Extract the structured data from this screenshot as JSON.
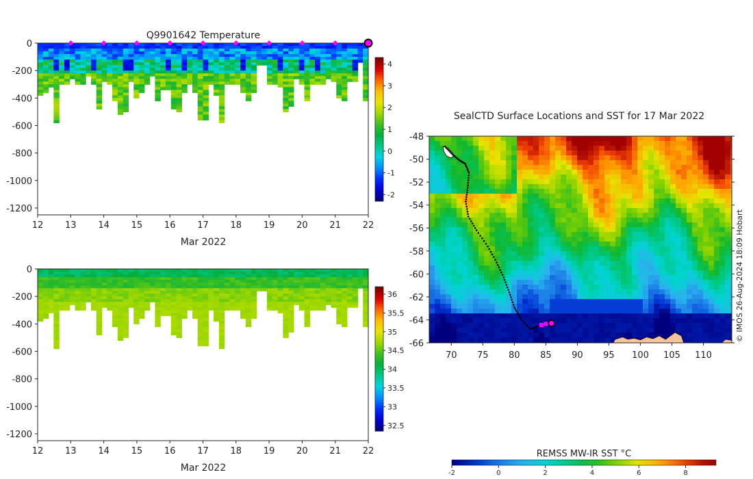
{
  "colors": {
    "jet": [
      "#00007f",
      "#0000d4",
      "#0030ff",
      "#0090ff",
      "#00d4e6",
      "#00c888",
      "#00b040",
      "#40c020",
      "#a0d800",
      "#e6e600",
      "#ffc000",
      "#ff6a00",
      "#e00000",
      "#800000"
    ],
    "sst_sea_stops": [
      {
        "v": -2,
        "c": "#00007f"
      },
      {
        "v": -1,
        "c": "#0030d0"
      },
      {
        "v": 0,
        "c": "#1a78e6"
      },
      {
        "v": 1,
        "c": "#2bb2ee"
      },
      {
        "v": 2,
        "c": "#00d4d0"
      },
      {
        "v": 3,
        "c": "#00c880"
      },
      {
        "v": 4,
        "c": "#10b830"
      },
      {
        "v": 5,
        "c": "#80d000"
      },
      {
        "v": 6,
        "c": "#e6e600"
      },
      {
        "v": 7,
        "c": "#ffa000"
      },
      {
        "v": 8,
        "c": "#f04000"
      },
      {
        "v": 9,
        "c": "#a00000"
      }
    ],
    "land": "#f4c39a",
    "track": "#000000",
    "marker": "#ff00ff"
  },
  "chart_data": [
    {
      "type": "heatmap",
      "name": "temperature-section",
      "title": "Q9901642  Temperature",
      "xlabel": "Mar 2022",
      "ylabel": "",
      "xlim": [
        12,
        22
      ],
      "ylim": [
        -1250,
        0
      ],
      "x_ticks": [
        "12",
        "13",
        "14",
        "15",
        "16",
        "17",
        "18",
        "19",
        "20",
        "21",
        "22"
      ],
      "y_ticks": [
        {
          "v": 0,
          "label": "0"
        },
        {
          "v": -200,
          "label": "-200"
        },
        {
          "v": -400,
          "label": "-400"
        },
        {
          "v": -600,
          "label": "-600"
        },
        {
          "v": -800,
          "label": "-800"
        },
        {
          "v": -1000,
          "label": "-1000"
        },
        {
          "v": -1200,
          "label": "-1200"
        }
      ],
      "colorbar": {
        "min": -2.3,
        "max": 4.3,
        "ticks": [
          "-2",
          "-1",
          "0",
          "1",
          "2",
          "3",
          "4"
        ],
        "tick_values": [
          -2,
          -1,
          0,
          1,
          2,
          3,
          4
        ]
      },
      "value_range": [
        -2.3,
        4.3
      ],
      "profile_depths": [
        380,
        360,
        310,
        570,
        290,
        300,
        250,
        290,
        300,
        240,
        290,
        480,
        270,
        290,
        410,
        520,
        500,
        270,
        390,
        360,
        290,
        230,
        410,
        330,
        340,
        480,
        500,
        360,
        290,
        360,
        550,
        550,
        300,
        370,
        570,
        290,
        290,
        290,
        360,
        420,
        350,
        150,
        150,
        300,
        300,
        320,
        500,
        450,
        250,
        300,
        420,
        290,
        300,
        300,
        250,
        270,
        400,
        410,
        280,
        280,
        130,
        420
      ],
      "surface_markers": [
        13,
        14,
        15,
        16,
        17,
        18,
        19,
        20,
        21
      ],
      "current_marker": 22
    },
    {
      "type": "heatmap",
      "name": "salinity-section",
      "title": "",
      "xlabel": "Mar 2022",
      "ylabel": "",
      "xlim": [
        12,
        22
      ],
      "ylim": [
        -1250,
        0
      ],
      "x_ticks": [
        "12",
        "13",
        "14",
        "15",
        "16",
        "17",
        "18",
        "19",
        "20",
        "21",
        "22"
      ],
      "y_ticks": [
        {
          "v": 0,
          "label": "0"
        },
        {
          "v": -200,
          "label": "-200"
        },
        {
          "v": -400,
          "label": "-400"
        },
        {
          "v": -600,
          "label": "-600"
        },
        {
          "v": -800,
          "label": "-800"
        },
        {
          "v": -1000,
          "label": "-1000"
        },
        {
          "v": -1200,
          "label": "-1200"
        }
      ],
      "colorbar": {
        "min": 32.35,
        "max": 36.2,
        "ticks": [
          "32.5",
          "33",
          "33.5",
          "34",
          "34.5",
          "35",
          "35.5",
          "36"
        ],
        "tick_values": [
          32.5,
          33,
          33.5,
          34,
          34.5,
          35,
          35.5,
          36
        ]
      },
      "value_range": [
        32.35,
        36.2
      ],
      "profile_depths": [
        380,
        360,
        310,
        570,
        290,
        300,
        250,
        290,
        300,
        240,
        290,
        480,
        270,
        290,
        410,
        520,
        500,
        270,
        390,
        360,
        290,
        230,
        410,
        330,
        340,
        480,
        500,
        360,
        290,
        360,
        550,
        550,
        300,
        370,
        570,
        290,
        290,
        290,
        360,
        420,
        350,
        150,
        150,
        300,
        300,
        320,
        500,
        450,
        250,
        300,
        420,
        290,
        300,
        300,
        250,
        270,
        400,
        410,
        280,
        280,
        130,
        420
      ]
    },
    {
      "type": "heatmap",
      "name": "sst-map",
      "title": "SealCTD Surface Locations and SST for 17 Mar 2022",
      "xlabel": "",
      "ylabel": "",
      "xlim": [
        66.5,
        114.5
      ],
      "ylim": [
        -66,
        -48
      ],
      "x_ticks": [
        "70",
        "75",
        "80",
        "85",
        "90",
        "95",
        "100",
        "105",
        "110"
      ],
      "x_tick_values": [
        70,
        75,
        80,
        85,
        90,
        95,
        100,
        105,
        110
      ],
      "y_ticks": [
        "-48",
        "-50",
        "-52",
        "-54",
        "-56",
        "-58",
        "-60",
        "-62",
        "-64",
        "-66"
      ],
      "y_tick_values": [
        -48,
        -50,
        -52,
        -54,
        -56,
        -58,
        -60,
        -62,
        -64,
        -66
      ],
      "colorbar": {
        "title": "REMSS MW-IR SST °C",
        "min": -2,
        "max": 9.3,
        "ticks": [
          "-2",
          "0",
          "2",
          "4",
          "6",
          "8"
        ],
        "tick_values": [
          -2,
          0,
          2,
          4,
          6,
          8
        ]
      },
      "track": [
        {
          "lon": 69.0,
          "lat": -48.9
        },
        {
          "lon": 70.2,
          "lat": -49.6
        },
        {
          "lon": 71.3,
          "lat": -50.1
        },
        {
          "lon": 72.2,
          "lat": -50.4
        },
        {
          "lon": 72.8,
          "lat": -51.2
        },
        {
          "lon": 72.6,
          "lat": -52.5
        },
        {
          "lon": 72.3,
          "lat": -53.7
        },
        {
          "lon": 72.7,
          "lat": -55.0
        },
        {
          "lon": 74.0,
          "lat": -56.2
        },
        {
          "lon": 75.8,
          "lat": -57.6
        },
        {
          "lon": 77.2,
          "lat": -59.0
        },
        {
          "lon": 78.3,
          "lat": -60.3
        },
        {
          "lon": 79.2,
          "lat": -61.6
        },
        {
          "lon": 80.0,
          "lat": -62.9
        },
        {
          "lon": 81.0,
          "lat": -63.9
        },
        {
          "lon": 82.5,
          "lat": -64.8
        },
        {
          "lon": 84.0,
          "lat": -64.5
        }
      ],
      "markers": [
        {
          "lon": 84.3,
          "lat": -64.45
        },
        {
          "lon": 85.0,
          "lat": -64.35
        }
      ],
      "current_location": {
        "lon": 85.9,
        "lat": -64.3
      }
    }
  ],
  "credit": "© IMOS 26-Aug-2024 18:09 Hobart"
}
